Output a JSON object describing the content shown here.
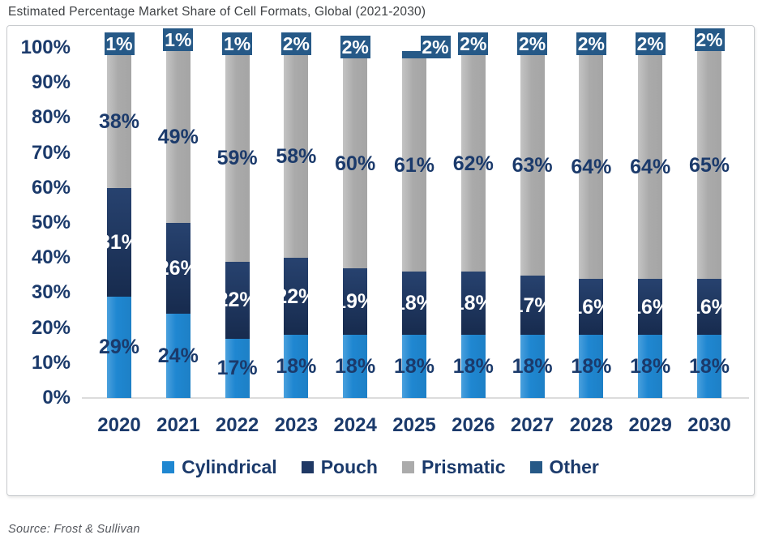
{
  "title": "Estimated Percentage Market Share of Cell Formats, Global (2021-2030)",
  "source": "Source: Frost & Sullivan",
  "chart_data": {
    "type": "bar",
    "stacked": true,
    "title": "Estimated Percentage Market Share of Cell Formats, Global (2021-2030)",
    "xlabel": "",
    "ylabel": "",
    "ylim": [
      0,
      100
    ],
    "grid": false,
    "legend_position": "bottom",
    "categories": [
      "2020",
      "2021",
      "2022",
      "2023",
      "2024",
      "2025",
      "2026",
      "2027",
      "2028",
      "2029",
      "2030"
    ],
    "series": [
      {
        "name": "Cylindrical",
        "color": "#1f87d1",
        "label_color": "#1b3a6b",
        "values": [
          29,
          24,
          17,
          18,
          18,
          18,
          18,
          18,
          18,
          18,
          18
        ]
      },
      {
        "name": "Pouch",
        "color": "#1f3864",
        "label_color": "#ffffff",
        "values": [
          31,
          26,
          22,
          22,
          19,
          18,
          18,
          17,
          16,
          16,
          16
        ]
      },
      {
        "name": "Prismatic",
        "color": "#ababab",
        "label_color": "#1b3a6b",
        "values": [
          38,
          49,
          59,
          58,
          60,
          61,
          62,
          63,
          64,
          64,
          65
        ]
      },
      {
        "name": "Other",
        "color": "#265987",
        "label_color": "#ffffff",
        "values": [
          1,
          1,
          1,
          2,
          2,
          2,
          2,
          2,
          2,
          2,
          2
        ]
      }
    ],
    "y_ticks": [
      "0%",
      "10%",
      "20%",
      "30%",
      "40%",
      "50%",
      "60%",
      "70%",
      "80%",
      "90%",
      "100%"
    ],
    "other_label_outside": "2025"
  }
}
